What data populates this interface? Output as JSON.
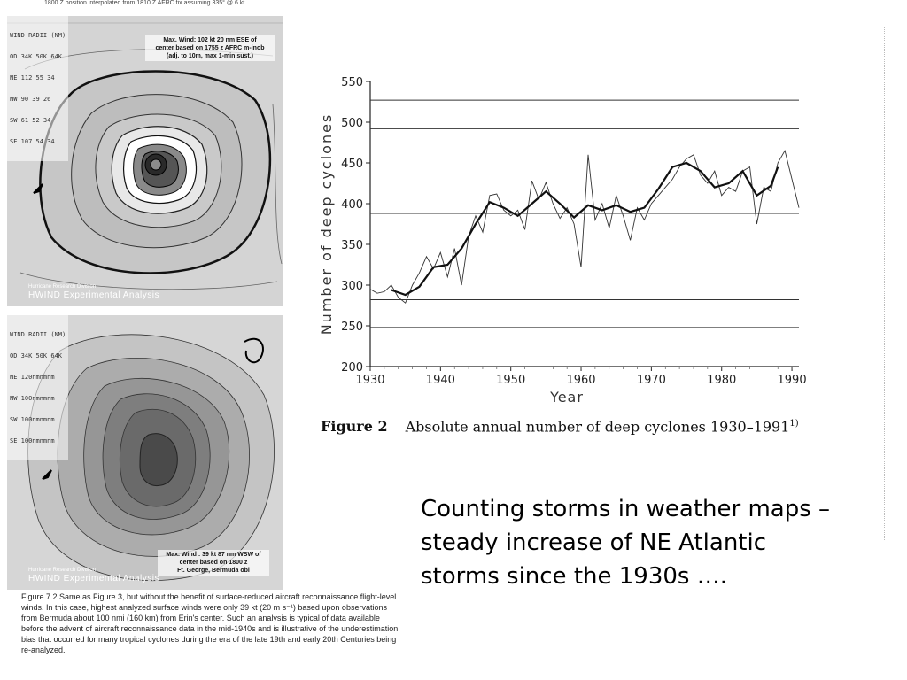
{
  "map_top": {
    "top_text": "1800 Z position interpolated from 1810 Z AFRC fix assuming 335° @ 6 kt",
    "header_lines": [
      "WIND RADII (NM)",
      "OD 34K 50K 64K",
      "NE 112 55 34",
      "NW 90 39 26",
      "SW 61 52 34",
      "SE 107 54 34"
    ],
    "wind_note": [
      "Max. Wind: 102 kt  20 nm ESE of",
      "center based on 1755 z AFRC m-inob",
      "(adj. to 10m, max 1-min sust.)"
    ],
    "credit_small": "Hurricane Research Division",
    "credit_big": "HWIND Experimental Analysis"
  },
  "map_bottom": {
    "header_lines": [
      "WIND RADII (NM)",
      "OD 34K 50K 64K",
      "NE 120nmnmnm",
      "NW 100nmnmnm",
      "SW 100nmnmnm",
      "SE 100nmnmnm"
    ],
    "wind_note": [
      "Max. Wind : 39 kt 87 nm WSW of",
      "center based on 1800 z",
      "Ft. George, Bermuda obl"
    ],
    "credit_small": "Hurricane Research Division",
    "credit_big": "HWIND Experimental Analysis"
  },
  "fig72_caption": "Figure 7.2  Same as Figure 3, but without the benefit of surface-reduced aircraft reconnaissance flight-level winds.  In this case, highest analyzed surface winds were only 39 kt (20 m s⁻¹) based upon observations from Bermuda about 100 nmi (160 km) from Erin's center.  Such an analysis is typical of data available before the advent of aircraft reconnaissance data in the mid-1940s and is illustrative of the underestimation bias that occurred for many tropical cyclones during the era of the late 19th and early 20th Centuries being re-analyzed.",
  "figure2": {
    "label": "Figure 2",
    "text": "Absolute annual number of deep cyclones 1930–1991",
    "sup": "1)"
  },
  "slide_text": "Counting storms in weather maps – steady increase of NE Atlantic storms since the 1930s ….",
  "chart_data": {
    "type": "line",
    "title": "",
    "xlabel": "Year",
    "ylabel": "Number of deep cyclones",
    "xlim": [
      1930,
      1991
    ],
    "ylim": [
      200,
      550
    ],
    "xticks": [
      1930,
      1940,
      1950,
      1960,
      1970,
      1980,
      1990
    ],
    "yticks": [
      200,
      250,
      300,
      350,
      400,
      450,
      500,
      550
    ],
    "grid": false,
    "horizontal_lines": [
      527,
      492,
      388,
      282,
      248
    ],
    "series": [
      {
        "x": [
          1930,
          1931,
          1932,
          1933,
          1934,
          1935,
          1936,
          1937,
          1938,
          1939,
          1940,
          1941,
          1942,
          1943,
          1944,
          1945,
          1946,
          1947,
          1948,
          1949,
          1950,
          1951,
          1952,
          1953,
          1954,
          1955,
          1956,
          1957,
          1958,
          1959,
          1960,
          1961,
          1962,
          1963,
          1964,
          1965,
          1966,
          1967,
          1968,
          1969,
          1970,
          1971,
          1972,
          1973,
          1974,
          1975,
          1976,
          1977,
          1978,
          1979,
          1980,
          1981,
          1982,
          1983,
          1984,
          1985,
          1986,
          1987,
          1988,
          1989,
          1990,
          1991
        ],
        "values": [
          295,
          290,
          292,
          300,
          285,
          278,
          300,
          315,
          335,
          320,
          340,
          310,
          345,
          300,
          360,
          385,
          365,
          410,
          412,
          392,
          385,
          392,
          368,
          428,
          405,
          426,
          400,
          382,
          395,
          375,
          322,
          460,
          380,
          400,
          370,
          410,
          385,
          355,
          395,
          380,
          400,
          410,
          420,
          430,
          445,
          455,
          460,
          435,
          425,
          440,
          410,
          420,
          415,
          440,
          445,
          375,
          420,
          415,
          450,
          465,
          430,
          395
        ]
      },
      {
        "x": [
          1933,
          1935,
          1937,
          1939,
          1941,
          1943,
          1945,
          1947,
          1949,
          1951,
          1953,
          1955,
          1957,
          1959,
          1961,
          1963,
          1965,
          1967,
          1969,
          1971,
          1973,
          1975,
          1977,
          1979,
          1981,
          1983,
          1985,
          1987,
          1988
        ],
        "values": [
          294,
          288,
          298,
          322,
          325,
          345,
          375,
          402,
          395,
          385,
          400,
          415,
          400,
          383,
          398,
          392,
          398,
          390,
          395,
          418,
          445,
          450,
          440,
          420,
          425,
          440,
          410,
          422,
          445
        ]
      }
    ]
  }
}
